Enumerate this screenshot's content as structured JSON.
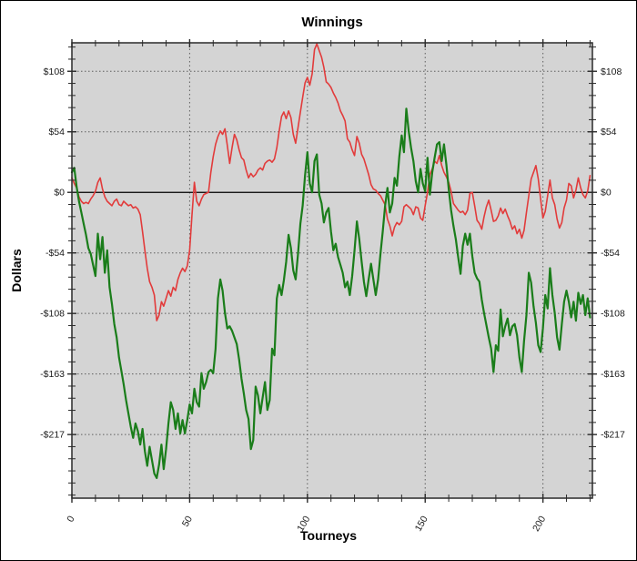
{
  "window": {
    "background": "#ffffff",
    "border_color": "#000000"
  },
  "chart_data": {
    "type": "line",
    "title": "Winnings",
    "xlabel": "Tourneys",
    "ylabel": "Dollars",
    "plot_background": "#d4d4d4",
    "grid": true,
    "grid_color": "#5e5e5e",
    "axis_color": "#2a2a2a",
    "zero_line_color": "#000000",
    "legend_position": "none",
    "xlim": [
      0,
      221
    ],
    "ylim": [
      -274,
      134
    ],
    "x_major_ticks": [
      0,
      50,
      100,
      150,
      200
    ],
    "x_minor_step": 10,
    "y_ticks": [
      {
        "label": "$108",
        "value": 108.5
      },
      {
        "label": "$54",
        "value": 54.25
      },
      {
        "label": "$0",
        "value": 0
      },
      {
        "label": "-$54",
        "value": -54.25
      },
      {
        "label": "-$108",
        "value": -108.5
      },
      {
        "label": "-$163",
        "value": -162.75
      },
      {
        "label": "-$217",
        "value": -217
      }
    ],
    "y_minor_step": 10.85,
    "series": [
      {
        "name": "red-line",
        "color": "#e23b3b",
        "width": 1.6,
        "x_start": 0,
        "x_step": 1,
        "values": [
          13,
          8,
          4,
          -4,
          -8,
          -10,
          -9,
          -10,
          -6,
          -3,
          1,
          9,
          13,
          3,
          -4,
          -8,
          -10,
          -12,
          -8,
          -6,
          -11,
          -12,
          -8,
          -10,
          -12,
          -11,
          -14,
          -13,
          -15,
          -20,
          -35,
          -52,
          -68,
          -80,
          -85,
          -92,
          -115,
          -110,
          -98,
          -102,
          -95,
          -88,
          -93,
          -85,
          -88,
          -78,
          -72,
          -68,
          -71,
          -66,
          -52,
          -20,
          9,
          -8,
          -12,
          -6,
          -2,
          -1,
          0,
          18,
          32,
          43,
          50,
          55,
          52,
          57,
          42,
          26,
          40,
          52,
          47,
          38,
          31,
          29,
          20,
          13,
          17,
          14,
          16,
          20,
          22,
          20,
          26,
          28,
          29,
          27,
          30,
          40,
          55,
          68,
          72,
          66,
          73,
          67,
          52,
          44,
          58,
          72,
          85,
          98,
          103,
          96,
          106,
          128,
          133,
          127,
          121,
          112,
          99,
          97,
          94,
          89,
          85,
          80,
          73,
          69,
          64,
          48,
          45,
          38,
          33,
          50,
          44,
          34,
          30,
          23,
          16,
          7,
          3,
          2,
          -1,
          -3,
          -7,
          -11,
          -24,
          -30,
          -39,
          -31,
          -27,
          -29,
          -26,
          -13,
          -11,
          -13,
          -15,
          -20,
          -13,
          -14,
          -23,
          -25,
          -12,
          0,
          16,
          21,
          28,
          26,
          33,
          24,
          18,
          14,
          9,
          1,
          -10,
          -13,
          -16,
          -18,
          -17,
          -20,
          -16,
          -1,
          0,
          -12,
          -25,
          -28,
          -33,
          -22,
          -13,
          -7,
          -16,
          -26,
          -25,
          -21,
          -14,
          -19,
          -15,
          -21,
          -26,
          -33,
          -30,
          -37,
          -33,
          -41,
          -34,
          -18,
          -3,
          12,
          18,
          24,
          12,
          -6,
          -23,
          -17,
          -3,
          11,
          -5,
          -11,
          -24,
          -32,
          -27,
          -14,
          -7,
          8,
          6,
          -5,
          2,
          13,
          4,
          -2,
          -5,
          1,
          15
        ]
      },
      {
        "name": "green-line",
        "color": "#1a7d1a",
        "width": 2.2,
        "x_start": 0,
        "x_step": 1,
        "values": [
          18,
          22,
          5,
          -8,
          -18,
          -28,
          -38,
          -50,
          -55,
          -65,
          -75,
          -37,
          -60,
          -40,
          -72,
          -52,
          -85,
          -100,
          -118,
          -130,
          -148,
          -160,
          -172,
          -186,
          -198,
          -210,
          -220,
          -207,
          -214,
          -226,
          -212,
          -232,
          -245,
          -228,
          -240,
          -252,
          -256,
          -244,
          -226,
          -248,
          -230,
          -207,
          -188,
          -195,
          -212,
          -198,
          -216,
          -204,
          -216,
          -204,
          -190,
          -198,
          -176,
          -188,
          -192,
          -162,
          -176,
          -170,
          -161,
          -159,
          -162,
          -140,
          -95,
          -78,
          -88,
          -108,
          -122,
          -120,
          -124,
          -130,
          -136,
          -150,
          -167,
          -180,
          -195,
          -203,
          -230,
          -222,
          -174,
          -182,
          -198,
          -184,
          -170,
          -195,
          -186,
          -140,
          -146,
          -95,
          -83,
          -92,
          -79,
          -62,
          -38,
          -50,
          -70,
          -78,
          -55,
          -28,
          -12,
          15,
          36,
          8,
          0,
          28,
          34,
          -2,
          -10,
          -27,
          -18,
          -14,
          -35,
          -52,
          -46,
          -58,
          -65,
          -72,
          -85,
          -80,
          -92,
          -75,
          -52,
          -26,
          -42,
          -62,
          -80,
          -93,
          -78,
          -64,
          -78,
          -92,
          -78,
          -55,
          -35,
          -12,
          4,
          -18,
          -10,
          13,
          6,
          32,
          51,
          36,
          75,
          55,
          40,
          28,
          10,
          0,
          21,
          8,
          1,
          31,
          -2,
          18,
          31,
          43,
          45,
          28,
          43,
          25,
          3,
          -16,
          -30,
          -42,
          -58,
          -73,
          -48,
          -37,
          -47,
          -37,
          -57,
          -72,
          -77,
          -80,
          -96,
          -108,
          -119,
          -130,
          -140,
          -161,
          -137,
          -142,
          -105,
          -129,
          -120,
          -113,
          -128,
          -120,
          -118,
          -128,
          -148,
          -161,
          -133,
          -110,
          -72,
          -81,
          -102,
          -117,
          -137,
          -143,
          -122,
          -92,
          -104,
          -68,
          -92,
          -108,
          -130,
          -141,
          -118,
          -98,
          -88,
          -98,
          -112,
          -98,
          -115,
          -90,
          -100,
          -92,
          -110,
          -95,
          -112
        ]
      }
    ]
  }
}
